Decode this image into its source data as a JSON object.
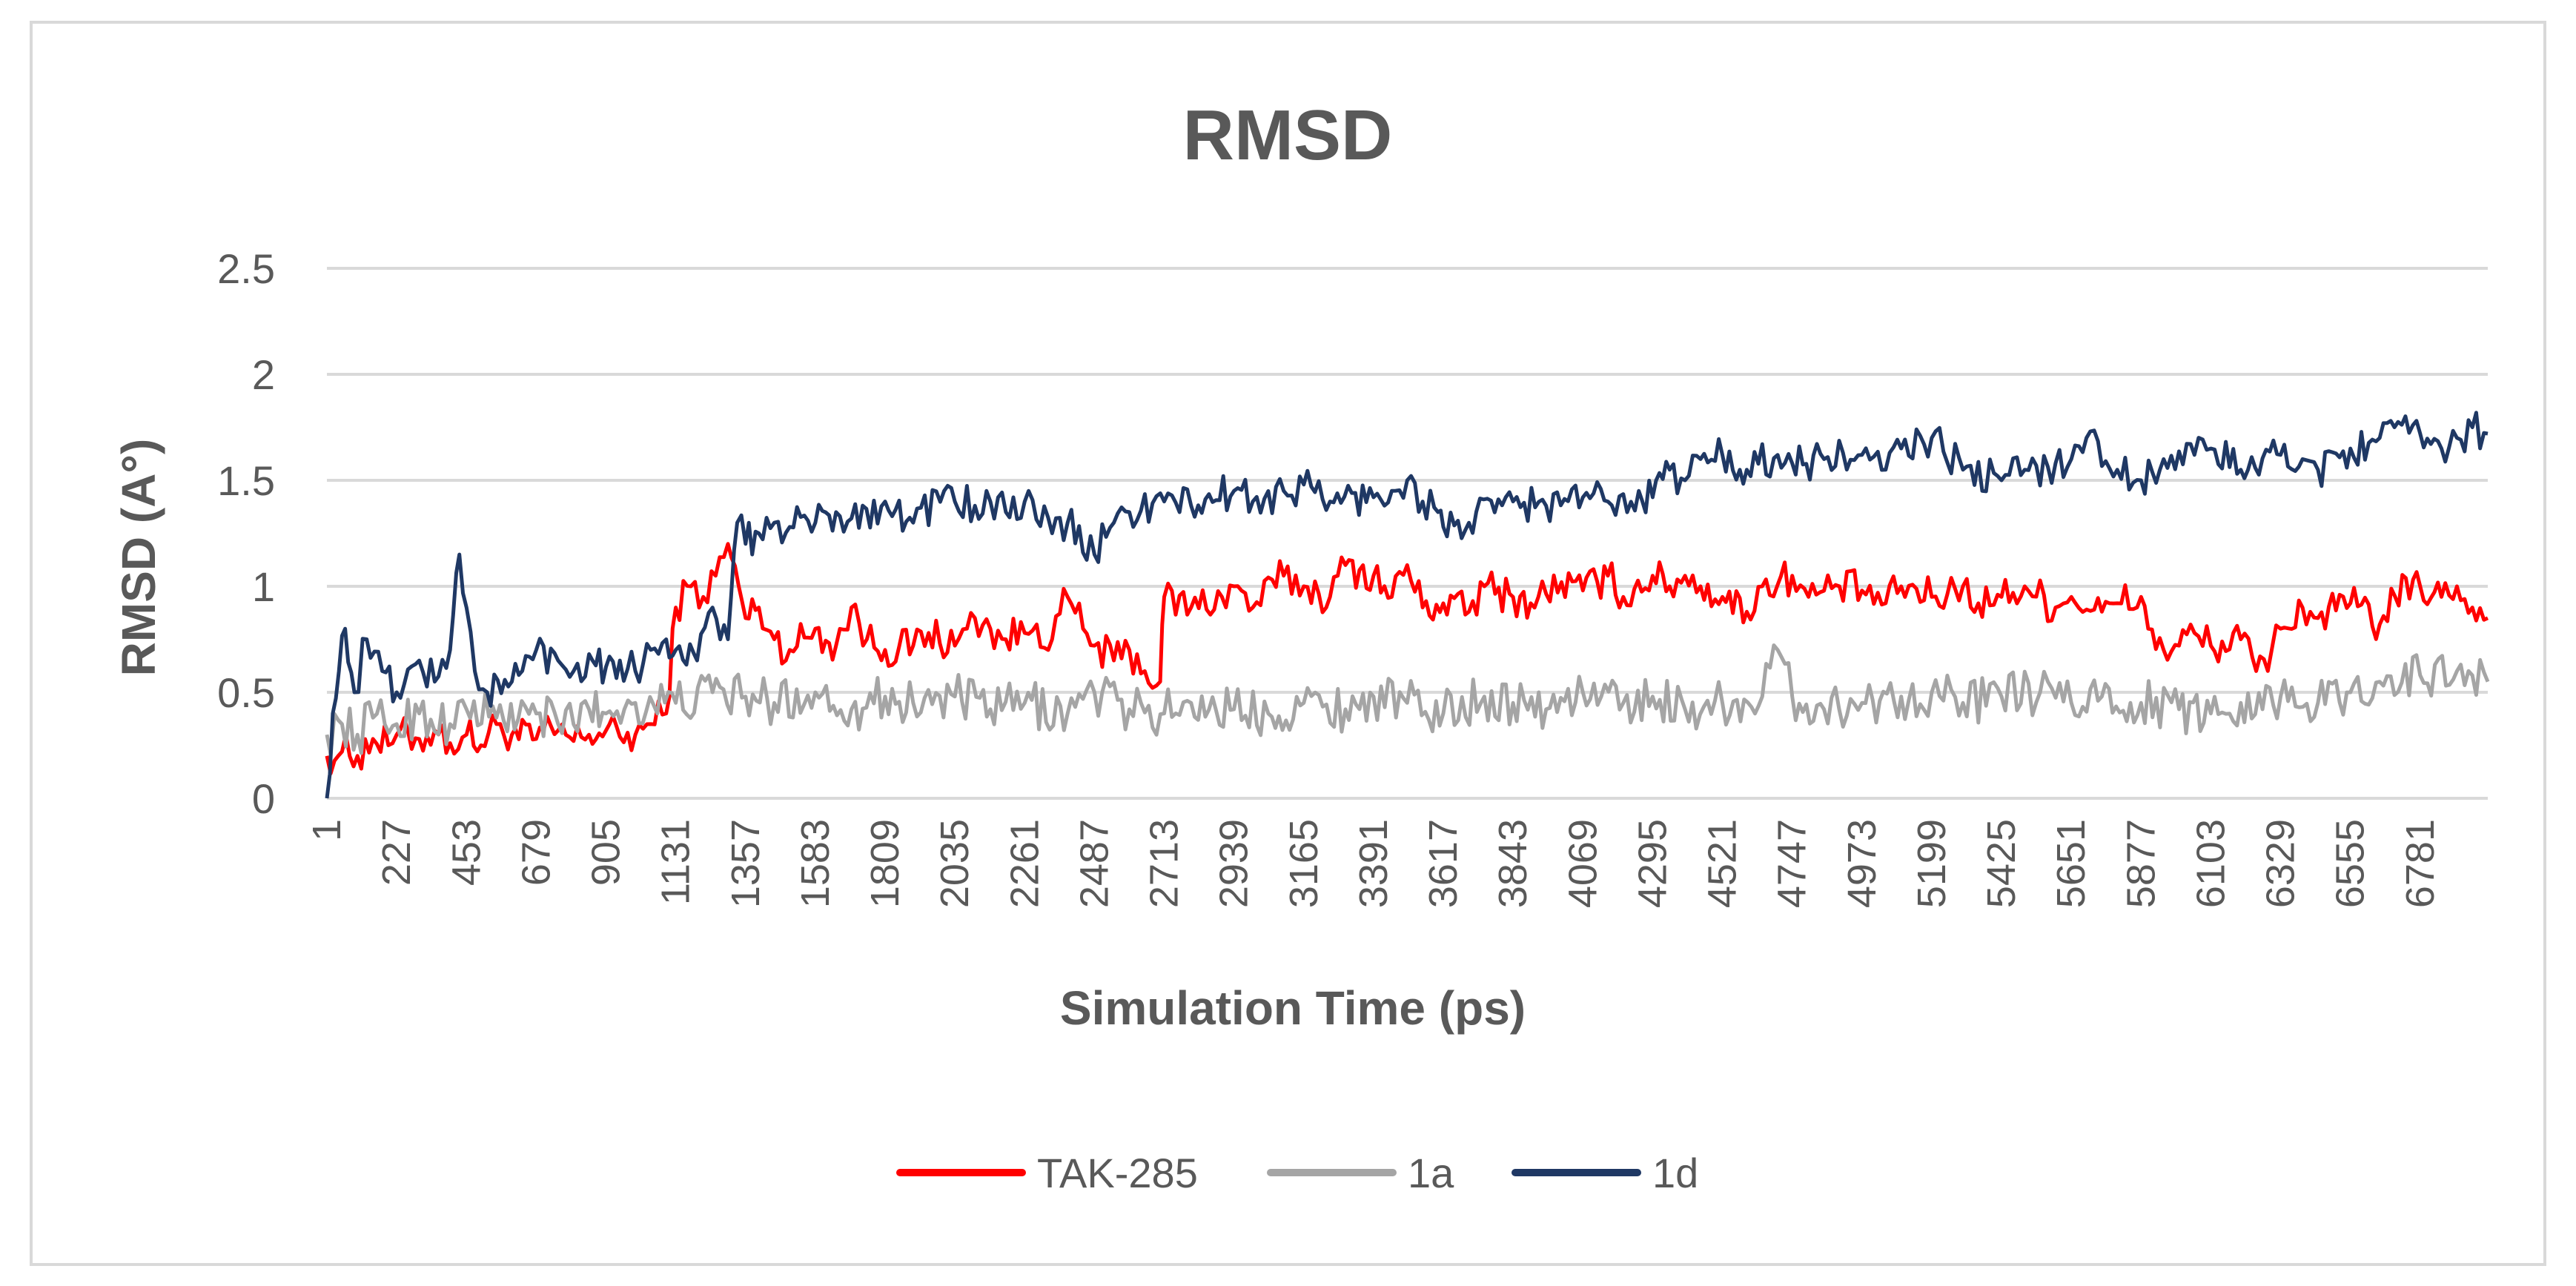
{
  "chart_data": {
    "type": "line",
    "title": "RMSD",
    "xlabel": "Simulation Time (ps)",
    "ylabel": "RMSD (A°)",
    "ylim": [
      0,
      2.5
    ],
    "yticks": [
      "0",
      "0.5",
      "1",
      "1.5",
      "2",
      "2.5"
    ],
    "xlim": [
      1,
      7000
    ],
    "xticks": [
      "1",
      "227",
      "453",
      "679",
      "905",
      "1131",
      "1357",
      "1583",
      "1809",
      "2035",
      "2261",
      "2487",
      "2713",
      "2939",
      "3165",
      "3391",
      "3617",
      "3843",
      "4069",
      "4295",
      "4521",
      "4747",
      "4973",
      "5199",
      "5425",
      "5651",
      "5877",
      "6103",
      "6329",
      "6555",
      "6781"
    ],
    "grid": "horizontal",
    "legend_position": "bottom",
    "series": [
      {
        "name": "TAK-285",
        "color": "#ff0000",
        "x": [
          1,
          50,
          100,
          150,
          200,
          227,
          300,
          350,
          400,
          453,
          500,
          550,
          600,
          679,
          750,
          800,
          850,
          905,
          950,
          1000,
          1050,
          1100,
          1131,
          1180,
          1220,
          1260,
          1300,
          1357,
          1400,
          1450,
          1500,
          1583,
          1650,
          1700,
          1750,
          1809,
          1900,
          1950,
          2035,
          2100,
          2150,
          2200,
          2261,
          2300,
          2350,
          2400,
          2450,
          2487,
          2550,
          2600,
          2650,
          2700,
          2713,
          2800,
          2900,
          2939,
          3000,
          3100,
          3165,
          3250,
          3300,
          3391,
          3450,
          3500,
          3550,
          3617,
          3700,
          3750,
          3843,
          3900,
          4000,
          4069,
          4150,
          4200,
          4295,
          4350,
          4400,
          4450,
          4521,
          4600,
          4650,
          4747,
          4800,
          4900,
          4973,
          5050,
          5100,
          5199,
          5300,
          5350,
          5425,
          5500,
          5600,
          5651,
          5750,
          5800,
          5877,
          5900,
          5950,
          6000,
          6050,
          6103,
          6200,
          6250,
          6300,
          6329,
          6400,
          6450,
          6555,
          6650,
          6700,
          6781,
          6850,
          6900,
          6950,
          7000
        ],
        "values": [
          0.2,
          0.22,
          0.2,
          0.28,
          0.25,
          0.3,
          0.28,
          0.32,
          0.26,
          0.3,
          0.25,
          0.35,
          0.3,
          0.28,
          0.32,
          0.27,
          0.3,
          0.32,
          0.29,
          0.3,
          0.35,
          0.4,
          0.9,
          1.0,
          0.95,
          1.05,
          1.2,
          0.85,
          0.9,
          0.75,
          0.7,
          0.8,
          0.72,
          0.9,
          0.75,
          0.7,
          0.72,
          0.78,
          0.72,
          0.85,
          0.8,
          0.75,
          0.78,
          0.82,
          0.75,
          0.95,
          0.8,
          0.72,
          0.65,
          0.7,
          0.6,
          0.55,
          0.95,
          0.9,
          0.95,
          1.0,
          0.9,
          1.05,
          1.0,
          0.95,
          1.1,
          1.05,
          0.95,
          1.1,
          0.9,
          0.92,
          0.88,
          1.0,
          0.95,
          0.92,
          1.02,
          0.98,
          1.05,
          0.95,
          1.05,
          1.0,
          1.05,
          1.0,
          0.95,
          0.88,
          1.0,
          1.05,
          0.95,
          1.0,
          0.98,
          0.92,
          1.0,
          0.95,
          1.0,
          0.92,
          0.95,
          1.0,
          0.9,
          0.95,
          0.88,
          0.92,
          0.95,
          0.8,
          0.7,
          0.72,
          0.78,
          0.72,
          0.75,
          0.6,
          0.7,
          0.8,
          0.9,
          0.85,
          0.92,
          0.82,
          0.95,
          1.0,
          0.95,
          1.0,
          0.9,
          0.85
        ]
      },
      {
        "name": "1a",
        "color": "#a5a5a5",
        "x": [
          1,
          50,
          100,
          150,
          227,
          300,
          400,
          453,
          550,
          679,
          750,
          850,
          905,
          1000,
          1131,
          1250,
          1357,
          1450,
          1583,
          1700,
          1809,
          1900,
          2035,
          2150,
          2261,
          2400,
          2487,
          2600,
          2713,
          2800,
          2939,
          3050,
          3165,
          3300,
          3391,
          3500,
          3617,
          3750,
          3843,
          3950,
          4069,
          4200,
          4295,
          4400,
          4521,
          4650,
          4700,
          4747,
          4850,
          4973,
          5100,
          5199,
          5300,
          5425,
          5550,
          5651,
          5750,
          5877,
          6000,
          6103,
          6200,
          6329,
          6450,
          6555,
          6650,
          6781,
          6900,
          7000
        ],
        "values": [
          0.3,
          0.35,
          0.3,
          0.38,
          0.35,
          0.4,
          0.35,
          0.42,
          0.38,
          0.4,
          0.35,
          0.42,
          0.4,
          0.45,
          0.45,
          0.5,
          0.48,
          0.45,
          0.5,
          0.42,
          0.48,
          0.45,
          0.48,
          0.42,
          0.45,
          0.4,
          0.5,
          0.42,
          0.4,
          0.45,
          0.42,
          0.4,
          0.45,
          0.42,
          0.48,
          0.45,
          0.4,
          0.48,
          0.45,
          0.42,
          0.5,
          0.45,
          0.48,
          0.42,
          0.45,
          0.48,
          0.7,
          0.48,
          0.42,
          0.45,
          0.48,
          0.5,
          0.45,
          0.48,
          0.5,
          0.45,
          0.48,
          0.45,
          0.42,
          0.4,
          0.45,
          0.48,
          0.45,
          0.5,
          0.55,
          0.58,
          0.6,
          0.55
        ]
      },
      {
        "name": "1d",
        "color": "#1f3864",
        "x": [
          1,
          20,
          40,
          60,
          90,
          130,
          180,
          227,
          300,
          350,
          400,
          430,
          453,
          480,
          520,
          600,
          679,
          750,
          800,
          850,
          905,
          950,
          1000,
          1050,
          1100,
          1131,
          1200,
          1250,
          1300,
          1330,
          1357,
          1400,
          1450,
          1500,
          1583,
          1650,
          1700,
          1809,
          1900,
          2000,
          2035,
          2100,
          2200,
          2261,
          2350,
          2400,
          2487,
          2550,
          2600,
          2713,
          2800,
          2939,
          3000,
          3100,
          3165,
          3250,
          3391,
          3450,
          3500,
          3550,
          3600,
          3617,
          3700,
          3843,
          3950,
          4069,
          4150,
          4250,
          4295,
          4350,
          4400,
          4450,
          4521,
          4600,
          4700,
          4747,
          4850,
          4973,
          5050,
          5100,
          5199,
          5300,
          5425,
          5500,
          5600,
          5651,
          5700,
          5800,
          5877,
          5950,
          6050,
          6103,
          6200,
          6329,
          6400,
          6450,
          6555,
          6650,
          6781,
          6850,
          6900,
          6950,
          7000
        ],
        "values": [
          0.0,
          0.4,
          0.6,
          0.8,
          0.5,
          0.75,
          0.6,
          0.5,
          0.65,
          0.55,
          0.7,
          1.15,
          0.9,
          0.6,
          0.5,
          0.55,
          0.7,
          0.65,
          0.6,
          0.68,
          0.62,
          0.65,
          0.6,
          0.7,
          0.75,
          0.7,
          0.65,
          0.9,
          0.75,
          1.3,
          1.2,
          1.25,
          1.3,
          1.28,
          1.3,
          1.35,
          1.32,
          1.4,
          1.3,
          1.45,
          1.4,
          1.38,
          1.35,
          1.4,
          1.25,
          1.3,
          1.15,
          1.3,
          1.35,
          1.4,
          1.38,
          1.45,
          1.4,
          1.45,
          1.48,
          1.4,
          1.42,
          1.45,
          1.5,
          1.4,
          1.35,
          1.28,
          1.3,
          1.4,
          1.38,
          1.42,
          1.4,
          1.45,
          1.42,
          1.55,
          1.5,
          1.6,
          1.62,
          1.55,
          1.62,
          1.58,
          1.6,
          1.62,
          1.55,
          1.65,
          1.7,
          1.55,
          1.5,
          1.55,
          1.58,
          1.6,
          1.7,
          1.55,
          1.5,
          1.6,
          1.62,
          1.65,
          1.55,
          1.62,
          1.6,
          1.55,
          1.65,
          1.7,
          1.72,
          1.65,
          1.7,
          1.75,
          1.72
        ]
      }
    ]
  }
}
